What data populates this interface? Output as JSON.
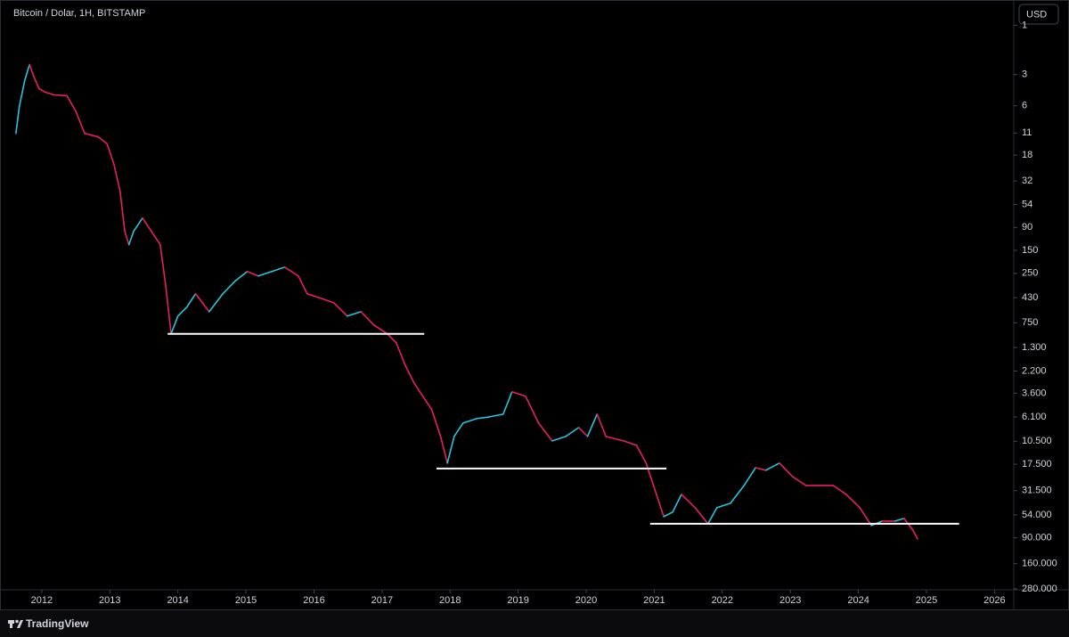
{
  "chart_data": {
    "type": "line",
    "title": "Bitcoin / Dolar, 1H, BITSTAMP",
    "currency": "USD",
    "brand": "TradingView",
    "log_scale": true,
    "inverted": true,
    "up_color": "#26c6da",
    "down_color": "#e91e63",
    "level_color": "#ffffff",
    "xlim": [
      2011.53,
      2026.27
    ],
    "xticks": [
      2012,
      2013,
      2014,
      2015,
      2016,
      2017,
      2018,
      2019,
      2020,
      2021,
      2022,
      2023,
      2024,
      2025,
      2026
    ],
    "ylim": [
      0.57,
      286000
    ],
    "yticks": [
      1,
      3,
      6,
      11,
      18,
      32,
      54,
      90,
      150,
      250,
      430,
      750,
      {
        "value": 1300,
        "label": "1.300"
      },
      {
        "value": 2200,
        "label": "2.200"
      },
      {
        "value": 3600,
        "label": "3.600"
      },
      {
        "value": 6100,
        "label": "6.100"
      },
      {
        "value": 10500,
        "label": "10.500"
      },
      {
        "value": 17500,
        "label": "17.500"
      },
      {
        "value": 31500,
        "label": "31.500"
      },
      {
        "value": 54000,
        "label": "54.000"
      },
      {
        "value": 90000,
        "label": "90.000"
      },
      {
        "value": 160000,
        "label": "160.000"
      },
      {
        "value": 280000,
        "label": "280.000"
      }
    ],
    "x": [
      2011.62,
      2011.67,
      2011.75,
      2011.82,
      2011.88,
      2011.96,
      2012.04,
      2012.17,
      2012.37,
      2012.5,
      2012.63,
      2012.83,
      2012.96,
      2013.06,
      2013.15,
      2013.22,
      2013.28,
      2013.35,
      2013.48,
      2013.61,
      2013.74,
      2013.82,
      2013.9,
      2014.0,
      2014.13,
      2014.26,
      2014.46,
      2014.66,
      2014.85,
      2015.02,
      2015.18,
      2015.38,
      2015.57,
      2015.77,
      2015.9,
      2016.1,
      2016.29,
      2016.49,
      2016.69,
      2016.88,
      2017.08,
      2017.21,
      2017.34,
      2017.47,
      2017.6,
      2017.73,
      2017.86,
      2017.96,
      2018.06,
      2018.19,
      2018.39,
      2018.58,
      2018.78,
      2018.91,
      2019.11,
      2019.3,
      2019.5,
      2019.7,
      2019.89,
      2020.02,
      2020.16,
      2020.29,
      2020.55,
      2020.74,
      2020.88,
      2021.01,
      2021.14,
      2021.27,
      2021.4,
      2021.6,
      2021.79,
      2021.92,
      2022.12,
      2022.32,
      2022.49,
      2022.64,
      2022.84,
      2023.03,
      2023.23,
      2023.43,
      2023.63,
      2023.82,
      2024.02,
      2024.19,
      2024.35,
      2024.54,
      2024.67,
      2024.8,
      2024.87
    ],
    "values": [
      11.1,
      6.1,
      3.4,
      2.4,
      3.1,
      4.1,
      4.4,
      4.7,
      4.8,
      6.8,
      11.1,
      12,
      14,
      22,
      40,
      98,
      132,
      98,
      73,
      98,
      132,
      324,
      962,
      647,
      531,
      394,
      587,
      394,
      293,
      240,
      265,
      240,
      218,
      265,
      394,
      435,
      481,
      647,
      587,
      789,
      962,
      1175,
      1930,
      2865,
      3855,
      5195,
      9420,
      17060,
      9420,
      7000,
      6340,
      6095,
      5740,
      3490,
      3855,
      7000,
      10400,
      9420,
      7730,
      9420,
      5740,
      9420,
      10400,
      11480,
      17060,
      31000,
      56100,
      50800,
      34200,
      46000,
      65800,
      46000,
      41700,
      28100,
      18900,
      20000,
      17060,
      23000,
      28100,
      28100,
      28100,
      34200,
      46000,
      68400,
      62000,
      62000,
      58400,
      75700,
      92300
    ],
    "levels": [
      {
        "value": 962,
        "x": [
          2013.85,
          2017.62
        ]
      },
      {
        "value": 19250,
        "x": [
          2017.8,
          2021.18
        ]
      },
      {
        "value": 65800,
        "x": [
          2020.94,
          2025.48
        ]
      }
    ]
  }
}
